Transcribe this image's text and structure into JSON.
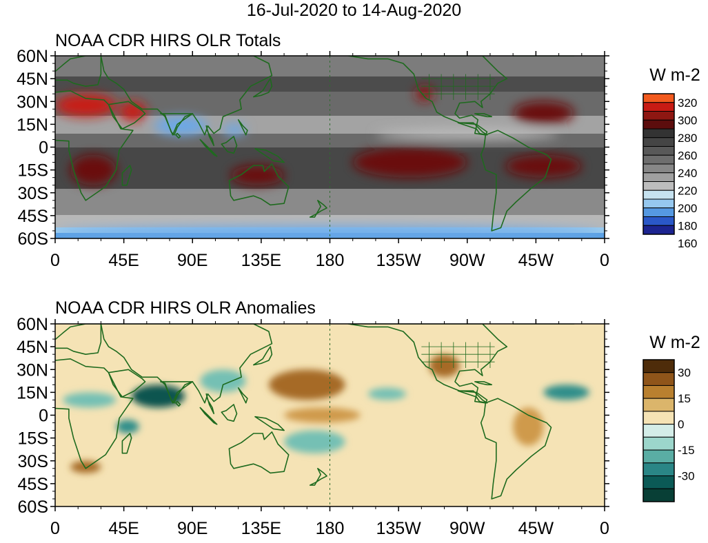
{
  "page": {
    "title": "16-Jul-2020 to 14-Aug-2020"
  },
  "colors": {
    "land_outline": "#1e6a1e",
    "dateline": "#2f6b2f"
  },
  "panels": [
    {
      "id": "totals",
      "title": "NOAA CDR HIRS OLR Totals",
      "colorbar": {
        "unit": "W m-2",
        "labels": [
          "320",
          "300",
          "280",
          "260",
          "240",
          "220",
          "200",
          "180",
          "160"
        ],
        "colors": [
          "#f25a1e",
          "#c81b14",
          "#8e1712",
          "#5c0d0d",
          "#333333",
          "#454545",
          "#595959",
          "#6e6e6e",
          "#878787",
          "#a0a0a0",
          "#bdbdbd",
          "#c6e2f0",
          "#96c8ef",
          "#5599e2",
          "#2a58c8",
          "#1c2490"
        ]
      },
      "features": [
        {
          "label": "hot-desert-north-africa",
          "lon": [
            0,
            40
          ],
          "lat": [
            20,
            35
          ],
          "value": 310
        },
        {
          "label": "hot-arabia",
          "lon": [
            42,
            60
          ],
          "lat": [
            17,
            30
          ],
          "value": 305
        },
        {
          "label": "hot-southern-africa",
          "lon": [
            10,
            40
          ],
          "lat": [
            -25,
            -5
          ],
          "value": 290
        },
        {
          "label": "hot-australia",
          "lon": [
            115,
            150
          ],
          "lat": [
            -25,
            -12
          ],
          "value": 290
        },
        {
          "label": "hot-east-pacific",
          "lon": [
            195,
            270
          ],
          "lat": [
            -20,
            0
          ],
          "value": 290
        },
        {
          "label": "hot-south-atlantic",
          "lon": [
            295,
            345
          ],
          "lat": [
            -20,
            -5
          ],
          "value": 285
        },
        {
          "label": "hot-sw-us",
          "lon": [
            236,
            248
          ],
          "lat": [
            30,
            40
          ],
          "value": 300
        },
        {
          "label": "hot-north-atlantic",
          "lon": [
            300,
            340
          ],
          "lat": [
            15,
            30
          ],
          "value": 285
        },
        {
          "label": "convective-bay-of-bengal",
          "lon": [
            65,
            100
          ],
          "lat": [
            8,
            20
          ],
          "value": 200
        },
        {
          "label": "convective-south-china-sea",
          "lon": [
            110,
            125
          ],
          "lat": [
            8,
            15
          ],
          "value": 200
        },
        {
          "label": "itcz-east-pacific",
          "lon": [
            210,
            330
          ],
          "lat": [
            5,
            12
          ],
          "value": 220
        },
        {
          "label": "southern-storm-track",
          "lon": [
            0,
            360
          ],
          "lat": [
            -60,
            -52
          ],
          "value": 190
        }
      ]
    },
    {
      "id": "anomalies",
      "title": "NOAA CDR HIRS OLR Anomalies",
      "colorbar": {
        "unit": "W m-2",
        "labels": [
          "30",
          "15",
          "0",
          "-15",
          "-30"
        ],
        "colors": [
          "#4e2c0a",
          "#8f551a",
          "#b9802f",
          "#dbb56b",
          "#f5e3b5",
          "#d4ede8",
          "#9cd6cb",
          "#5aada4",
          "#2a8686",
          "#0b5a56",
          "#083f36"
        ]
      },
      "features": [
        {
          "label": "wet-arabian-sea",
          "lon": [
            50,
            85
          ],
          "lat": [
            5,
            20
          ],
          "value": -30
        },
        {
          "label": "wet-west-africa",
          "lon": [
            5,
            40
          ],
          "lat": [
            5,
            15
          ],
          "value": -15
        },
        {
          "label": "wet-east-africa",
          "lon": [
            40,
            55
          ],
          "lat": [
            -12,
            -3
          ],
          "value": -20
        },
        {
          "label": "wet-se-asia",
          "lon": [
            95,
            125
          ],
          "lat": [
            15,
            30
          ],
          "value": -15
        },
        {
          "label": "wet-west-pacific-sh",
          "lon": [
            150,
            190
          ],
          "lat": [
            -25,
            -10
          ],
          "value": -15
        },
        {
          "label": "wet-atlantic-itcz",
          "lon": [
            320,
            350
          ],
          "lat": [
            10,
            20
          ],
          "value": -20
        },
        {
          "label": "wet-east-pacific",
          "lon": [
            205,
            230
          ],
          "lat": [
            10,
            18
          ],
          "value": -15
        },
        {
          "label": "dry-north-pacific",
          "lon": [
            140,
            190
          ],
          "lat": [
            10,
            30
          ],
          "value": 20
        },
        {
          "label": "dry-equatorial-pacific",
          "lon": [
            150,
            200
          ],
          "lat": [
            -5,
            5
          ],
          "value": 12
        },
        {
          "label": "dry-southern-africa",
          "lon": [
            10,
            30
          ],
          "lat": [
            -38,
            -30
          ],
          "value": 20
        },
        {
          "label": "dry-south-america",
          "lon": [
            300,
            320
          ],
          "lat": [
            -20,
            5
          ],
          "value": 12
        },
        {
          "label": "dry-central-us",
          "lon": [
            245,
            265
          ],
          "lat": [
            25,
            40
          ],
          "value": 20
        }
      ]
    }
  ],
  "axes": {
    "lat_labels": [
      "60N",
      "45N",
      "30N",
      "15N",
      "0",
      "15S",
      "30S",
      "45S",
      "60S"
    ],
    "lat_values": [
      60,
      45,
      30,
      15,
      0,
      -15,
      -30,
      -45,
      -60
    ],
    "lon_labels": [
      "0",
      "45E",
      "90E",
      "135E",
      "180",
      "135W",
      "90W",
      "45W",
      "0"
    ],
    "lon_values": [
      0,
      45,
      90,
      135,
      180,
      225,
      270,
      315,
      360
    ]
  }
}
